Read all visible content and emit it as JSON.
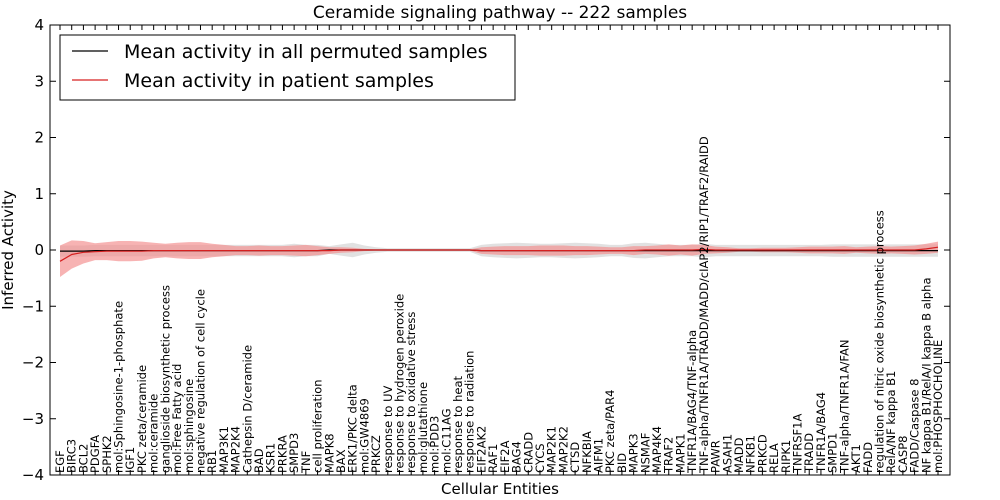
{
  "chart_data": {
    "type": "line",
    "title": "Ceramide signaling pathway -- 222 samples",
    "xlabel": "Cellular Entities",
    "ylabel": "Inferred Activity",
    "ylim": [
      -4,
      4
    ],
    "yticks": [
      -4,
      -3,
      -2,
      -1,
      0,
      1,
      2,
      3,
      4
    ],
    "grid": false,
    "legend_position": "top-left",
    "categories": [
      "EGF",
      "BIRC3",
      "BCL2",
      "PDGFA",
      "SPHK2",
      "mol:Sphingosine-1-phosphate",
      "IGF1",
      "PKC zeta/ceramide",
      "mol:ceramide",
      "ganglioside biosynthetic process",
      "mol:Free Fatty acid",
      "mol:sphingosine",
      "negative regulation of cell cycle",
      "RB1",
      "MAP3K1",
      "MAP2K4",
      "Cathepsin D/ceramide",
      "BAD",
      "KSR1",
      "PRKRA",
      "SMPD3",
      "TNF",
      "cell proliferation",
      "MAPK8",
      "BAX",
      "ERK1/PKC delta",
      "mol:GW4869",
      "PRKCZ",
      "response to UV",
      "response to hydrogen peroxide",
      "response to oxidative stress",
      "mol:glutathione",
      "mol:PDD3",
      "mol:C11AG",
      "response to heat",
      "response to radiation",
      "EIF2AK2",
      "RAF1",
      "EIF2A",
      "BAG4",
      "CRADD",
      "CYCS",
      "MAP2K1",
      "MAP2K2",
      "CTSD",
      "NFKBIA",
      "AIFM1",
      "PKC zeta/PAR4",
      "BID",
      "MAPK3",
      "NSMAF",
      "MAP4K4",
      "TRAF2",
      "MAPK1",
      "TNFR1A/BAG4/TNF-alpha",
      "TNF-alpha/TNFR1A/TRADD/MADD/cIAP2/RIP1/TRAF2/RAIDD",
      "PAWR",
      "ASAH1",
      "MADD",
      "NFKB1",
      "PRKCD",
      "RELA",
      "RIPK1",
      "TNFRSF1A",
      "TRADD",
      "TNFR1A/BAG4",
      "SMPD1",
      "TNF-alpha/TNFR1A/FAN",
      "AKT1",
      "FADD",
      "regulation of nitric oxide biosynthetic process",
      "RelA/NF kappa B1",
      "CASP8",
      "FADD/Caspase 8",
      "NF kappa B1/RelA/I kappa B alpha",
      "mol:PHOSPHOCHOLINE"
    ],
    "series": [
      {
        "name": "Mean activity in all permuted samples",
        "color": "#000000",
        "band_color": "#c8c8c8",
        "values": [
          -0.02,
          -0.02,
          -0.02,
          -0.01,
          -0.01,
          -0.01,
          -0.01,
          -0.01,
          -0.01,
          -0.01,
          -0.01,
          -0.01,
          -0.01,
          -0.01,
          -0.01,
          -0.01,
          -0.01,
          -0.01,
          -0.01,
          -0.01,
          -0.01,
          -0.01,
          -0.01,
          0.0,
          0.0,
          0.0,
          0.0,
          0.0,
          0.0,
          0.0,
          0.0,
          0.0,
          0.0,
          0.0,
          0.0,
          0.0,
          -0.01,
          -0.01,
          -0.01,
          -0.01,
          -0.01,
          -0.01,
          -0.01,
          -0.01,
          -0.01,
          -0.01,
          -0.01,
          -0.01,
          -0.01,
          -0.01,
          -0.01,
          -0.01,
          -0.01,
          -0.01,
          -0.01,
          -0.01,
          -0.01,
          -0.01,
          -0.01,
          -0.01,
          -0.01,
          -0.01,
          -0.01,
          -0.01,
          -0.01,
          -0.01,
          -0.01,
          -0.01,
          -0.01,
          -0.01,
          -0.01,
          -0.01,
          -0.01,
          -0.01,
          -0.01,
          -0.01
        ],
        "std": [
          0.1,
          0.1,
          0.1,
          0.1,
          0.1,
          0.1,
          0.1,
          0.1,
          0.1,
          0.1,
          0.1,
          0.1,
          0.1,
          0.1,
          0.1,
          0.1,
          0.1,
          0.1,
          0.1,
          0.1,
          0.12,
          0.1,
          0.1,
          0.07,
          0.1,
          0.13,
          0.08,
          0.05,
          0.03,
          0.03,
          0.03,
          0.03,
          0.03,
          0.03,
          0.03,
          0.03,
          0.1,
          0.12,
          0.13,
          0.14,
          0.13,
          0.12,
          0.12,
          0.13,
          0.14,
          0.13,
          0.12,
          0.1,
          0.1,
          0.13,
          0.14,
          0.12,
          0.1,
          0.1,
          0.1,
          0.12,
          0.1,
          0.1,
          0.1,
          0.1,
          0.1,
          0.1,
          0.1,
          0.1,
          0.1,
          0.1,
          0.11,
          0.11,
          0.11,
          0.11,
          0.11,
          0.11,
          0.11,
          0.11,
          0.11,
          0.11
        ]
      },
      {
        "name": "Mean activity in patient samples",
        "color": "#d62020",
        "band_color": "#f28b8b",
        "values": [
          -0.2,
          -0.08,
          -0.04,
          -0.03,
          -0.02,
          -0.02,
          -0.02,
          -0.02,
          -0.01,
          -0.01,
          -0.01,
          -0.01,
          -0.01,
          -0.01,
          -0.01,
          -0.01,
          -0.01,
          -0.01,
          -0.01,
          -0.01,
          -0.01,
          -0.01,
          -0.01,
          -0.01,
          0.0,
          0.0,
          0.0,
          0.0,
          0.0,
          0.0,
          0.0,
          0.0,
          0.0,
          0.0,
          0.0,
          0.0,
          -0.01,
          -0.01,
          -0.01,
          -0.01,
          -0.01,
          -0.01,
          -0.01,
          -0.01,
          -0.01,
          -0.01,
          -0.01,
          -0.01,
          -0.01,
          -0.01,
          0.0,
          0.0,
          0.0,
          0.0,
          0.0,
          0.01,
          0.0,
          0.0,
          0.0,
          0.0,
          0.0,
          0.0,
          0.0,
          0.0,
          0.0,
          0.0,
          0.0,
          0.0,
          0.0,
          0.0,
          0.0,
          0.0,
          0.0,
          0.0,
          0.02,
          0.05
        ],
        "std": [
          0.28,
          0.25,
          0.2,
          0.15,
          0.16,
          0.18,
          0.18,
          0.17,
          0.14,
          0.12,
          0.14,
          0.15,
          0.15,
          0.12,
          0.1,
          0.08,
          0.08,
          0.09,
          0.08,
          0.08,
          0.09,
          0.1,
          0.08,
          0.06,
          0.05,
          0.04,
          0.02,
          0.01,
          0.01,
          0.01,
          0.01,
          0.01,
          0.01,
          0.01,
          0.01,
          0.01,
          0.06,
          0.07,
          0.08,
          0.08,
          0.08,
          0.09,
          0.09,
          0.09,
          0.08,
          0.08,
          0.07,
          0.06,
          0.06,
          0.08,
          0.07,
          0.08,
          0.1,
          0.08,
          0.1,
          0.08,
          0.06,
          0.05,
          0.03,
          0.03,
          0.04,
          0.04,
          0.04,
          0.05,
          0.06,
          0.06,
          0.06,
          0.07,
          0.05,
          0.06,
          0.07,
          0.06,
          0.07,
          0.08,
          0.09,
          0.1
        ]
      }
    ]
  }
}
